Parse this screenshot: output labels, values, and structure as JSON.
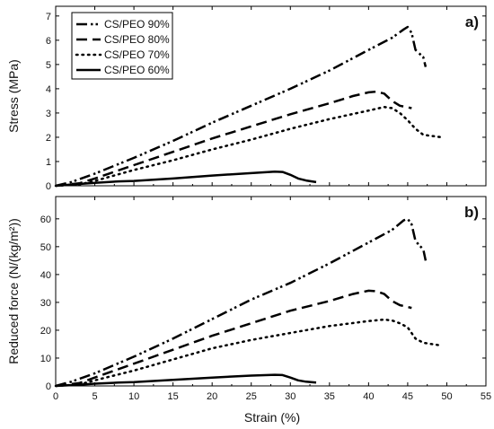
{
  "chart_data": [
    {
      "type": "line",
      "panel_label": "a)",
      "xlabel": "",
      "ylabel": "Stress (MPa)",
      "xlim": [
        0,
        55
      ],
      "ylim": [
        0,
        7.4
      ],
      "yticks": [
        0,
        1,
        2,
        3,
        4,
        5,
        6,
        7
      ],
      "xticks": [
        0,
        5,
        10,
        15,
        20,
        25,
        30,
        35,
        40,
        45,
        50,
        55
      ],
      "legend_position": "top-left",
      "series": [
        {
          "name": "CS/PEO 90%",
          "dash": "dash-dot-dot",
          "x": [
            0,
            2,
            5,
            10,
            15,
            20,
            25,
            30,
            35,
            40,
            43,
            44.5,
            45,
            45.5,
            46,
            47,
            47.3
          ],
          "y": [
            0,
            0.15,
            0.5,
            1.15,
            1.85,
            2.6,
            3.3,
            4.0,
            4.75,
            5.6,
            6.1,
            6.45,
            6.55,
            6.3,
            5.6,
            5.3,
            4.9
          ]
        },
        {
          "name": "CS/PEO 80%",
          "dash": "dash",
          "x": [
            0,
            3,
            5,
            10,
            15,
            20,
            25,
            30,
            35,
            38,
            40,
            41,
            42,
            43,
            44,
            45.5
          ],
          "y": [
            0,
            0.1,
            0.3,
            0.85,
            1.4,
            1.95,
            2.45,
            2.95,
            3.4,
            3.7,
            3.85,
            3.88,
            3.8,
            3.5,
            3.3,
            3.2
          ]
        },
        {
          "name": "CS/PEO 70%",
          "dash": "dot",
          "x": [
            0,
            3,
            5,
            10,
            15,
            20,
            25,
            30,
            35,
            40,
            42,
            43,
            44,
            45,
            46,
            47,
            49.3
          ],
          "y": [
            0,
            0.05,
            0.2,
            0.65,
            1.05,
            1.5,
            1.9,
            2.35,
            2.75,
            3.1,
            3.25,
            3.2,
            3.0,
            2.7,
            2.35,
            2.1,
            2.0
          ]
        },
        {
          "name": "CS/PEO 60%",
          "dash": "solid",
          "x": [
            0,
            2,
            5,
            8,
            10,
            15,
            20,
            25,
            28,
            29,
            30,
            31,
            32,
            33.3
          ],
          "y": [
            0,
            0.05,
            0.12,
            0.18,
            0.2,
            0.3,
            0.42,
            0.52,
            0.58,
            0.57,
            0.45,
            0.3,
            0.22,
            0.15
          ]
        }
      ]
    },
    {
      "type": "line",
      "panel_label": "b)",
      "xlabel": "Strain (%)",
      "ylabel": "Reduced force (N/(kg/m²))",
      "xlim": [
        0,
        55
      ],
      "ylim": [
        0,
        68
      ],
      "yticks": [
        0,
        10,
        20,
        30,
        40,
        50,
        60
      ],
      "xticks": [
        0,
        5,
        10,
        15,
        20,
        25,
        30,
        35,
        40,
        45,
        50,
        55
      ],
      "series": [
        {
          "name": "CS/PEO 90%",
          "dash": "dash-dot-dot",
          "x": [
            0,
            2,
            5,
            10,
            15,
            20,
            25,
            30,
            35,
            40,
            43,
            44.5,
            45,
            45.5,
            46,
            47,
            47.3
          ],
          "y": [
            0,
            1.5,
            4.5,
            10.5,
            17,
            24,
            31,
            37,
            44,
            51.5,
            56,
            59.5,
            60,
            58,
            52,
            49,
            45
          ]
        },
        {
          "name": "CS/PEO 80%",
          "dash": "dash",
          "x": [
            0,
            3,
            5,
            10,
            15,
            20,
            25,
            30,
            35,
            38,
            40,
            41,
            42,
            43,
            44,
            45.5
          ],
          "y": [
            0,
            1.0,
            3.0,
            8.0,
            13,
            18,
            22.5,
            27,
            30.5,
            33,
            34.2,
            34,
            33,
            30.5,
            29,
            28
          ]
        },
        {
          "name": "CS/PEO 70%",
          "dash": "dot",
          "x": [
            0,
            3,
            5,
            10,
            15,
            20,
            25,
            30,
            35,
            40,
            42,
            43,
            44,
            45,
            46,
            47,
            49.3
          ],
          "y": [
            0,
            0.5,
            2.0,
            5.5,
            9.5,
            13.5,
            16.5,
            19,
            21.5,
            23.3,
            23.8,
            23.5,
            22.5,
            21,
            17,
            15.5,
            14.5
          ]
        },
        {
          "name": "CS/PEO 60%",
          "dash": "solid",
          "x": [
            0,
            2,
            5,
            8,
            10,
            15,
            20,
            25,
            28,
            29,
            30,
            31,
            32,
            33.3
          ],
          "y": [
            0,
            0.3,
            0.8,
            1.2,
            1.4,
            2.2,
            3.0,
            3.7,
            4.0,
            3.9,
            3.0,
            2.0,
            1.5,
            1.2
          ]
        }
      ]
    }
  ]
}
